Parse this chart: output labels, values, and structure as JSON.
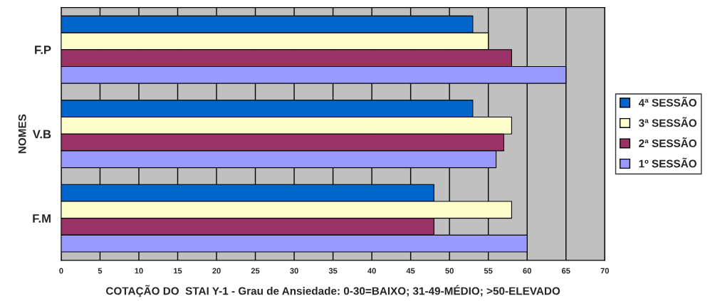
{
  "chart_data": {
    "type": "bar",
    "orientation": "horizontal",
    "xlabel": "COTAÇÃO DO  STAI Y-1 - Grau de Ansiedade: 0-30=BAIXO; 31-49-MÉDIO; >50-ELEVADO",
    "ylabel": "NOMES",
    "categories": [
      "F.P",
      "V.B",
      "F.M"
    ],
    "series": [
      {
        "name": "4ª SESSÃO",
        "color": "#0066cc",
        "values": [
          53,
          53,
          48
        ]
      },
      {
        "name": "3ª SESSÃO",
        "color": "#ffffcc",
        "values": [
          55,
          58,
          58
        ]
      },
      {
        "name": "2ª SESSÃO",
        "color": "#993366",
        "values": [
          58,
          57,
          48
        ]
      },
      {
        "name": "1º SESSÃO",
        "color": "#9999ff",
        "values": [
          65,
          56,
          60
        ]
      }
    ],
    "xlim": [
      0,
      70
    ],
    "xticks": [
      0,
      5,
      10,
      15,
      20,
      25,
      30,
      35,
      40,
      45,
      50,
      55,
      60,
      65,
      70
    ],
    "grid": "x",
    "legend": "right"
  }
}
